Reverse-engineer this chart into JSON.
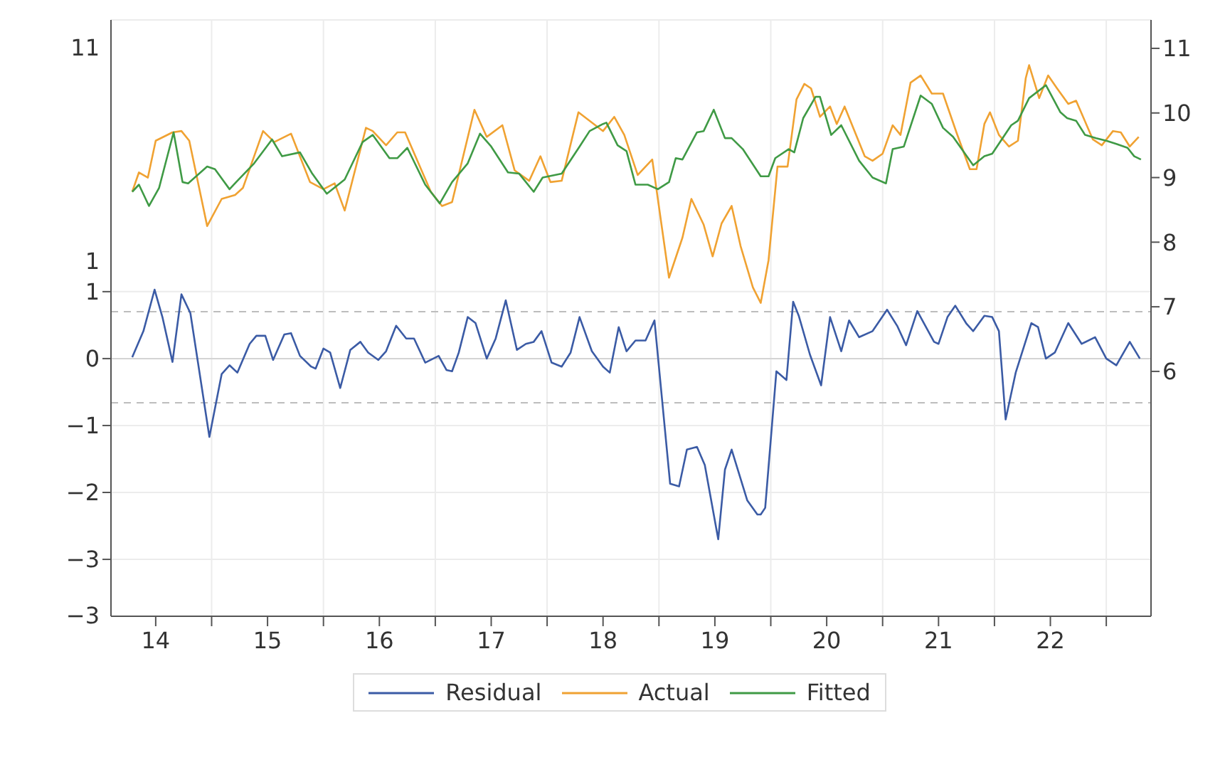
{
  "chart_data": {
    "type": "line",
    "xlim": [
      14.1,
      23.4
    ],
    "xticks": [
      {
        "value": 14.5,
        "label": "14"
      },
      {
        "value": 15,
        "label": null
      },
      {
        "value": 15.5,
        "label": "15"
      },
      {
        "value": 16,
        "label": null
      },
      {
        "value": 16.5,
        "label": "16"
      },
      {
        "value": 17,
        "label": null
      },
      {
        "value": 17.5,
        "label": "17"
      },
      {
        "value": 18,
        "label": null
      },
      {
        "value": 18.5,
        "label": "18"
      },
      {
        "value": 19,
        "label": null
      },
      {
        "value": 19.5,
        "label": "19"
      },
      {
        "value": 20,
        "label": null
      },
      {
        "value": 20.5,
        "label": "20"
      },
      {
        "value": 21,
        "label": null
      },
      {
        "value": 21.5,
        "label": "21"
      },
      {
        "value": 22,
        "label": null
      },
      {
        "value": 22.5,
        "label": "22"
      },
      {
        "value": 23,
        "label": null
      }
    ],
    "ylim": [
      -3.85,
      5.06
    ],
    "yticks": [
      {
        "value": -3,
        "label": "−3"
      },
      {
        "value": -2,
        "label": "−2"
      },
      {
        "value": -1,
        "label": "−1"
      },
      0,
      1
    ],
    "y2lim": [
      2.21,
      11.44
    ],
    "y2ticks": [
      6,
      7,
      8,
      9,
      10,
      11
    ],
    "annotations": [
      "11",
      "1",
      "−3"
    ],
    "grid": true,
    "legend": "bottom",
    "line_style": "solid",
    "marker": "none",
    "ref_lines": [
      {
        "axis": "y",
        "value": 0,
        "line_style": "solid",
        "color": "#d4d4d4"
      },
      {
        "axis": "y",
        "value": 0.7,
        "line_style": "dashed",
        "color": "#bdbdbd"
      },
      {
        "axis": "y",
        "value": -0.66,
        "line_style": "dashed",
        "color": "#bdbdbd"
      }
    ],
    "series": [
      {
        "name": "Residual",
        "color": "#3b5ba5",
        "x": [
          14.29,
          14.39,
          14.49,
          14.56,
          14.65,
          14.73,
          14.81,
          14.98,
          15.09,
          15.16,
          15.23,
          15.34,
          15.4,
          15.48,
          15.55,
          15.65,
          15.71,
          15.79,
          15.89,
          15.93,
          16,
          16.06,
          16.15,
          16.24,
          16.33,
          16.4,
          16.49,
          16.56,
          16.65,
          16.74,
          16.81,
          16.91,
          17.03,
          17.1,
          17.15,
          17.21,
          17.29,
          17.36,
          17.46,
          17.54,
          17.63,
          17.73,
          17.81,
          17.88,
          17.95,
          18.04,
          18.13,
          18.21,
          18.29,
          18.4,
          18.5,
          18.56,
          18.64,
          18.71,
          18.79,
          18.88,
          18.96,
          19.1,
          19.18,
          19.25,
          19.34,
          19.41,
          19.53,
          19.59,
          19.65,
          19.79,
          19.88,
          19.91,
          19.95,
          20.05,
          20.14,
          20.2,
          20.25,
          20.35,
          20.45,
          20.53,
          20.63,
          20.7,
          20.79,
          20.91,
          21.04,
          21.13,
          21.21,
          21.31,
          21.46,
          21.5,
          21.58,
          21.65,
          21.75,
          21.81,
          21.91,
          21.98,
          22.04,
          22.1,
          22.19,
          22.33,
          22.39,
          22.46,
          22.54,
          22.66,
          22.78,
          22.9,
          23,
          23.09,
          23.21,
          23.3
        ],
        "values": [
          0.02,
          0.41,
          1.03,
          0.62,
          -0.05,
          0.96,
          0.68,
          -1.17,
          -0.23,
          -0.1,
          -0.21,
          0.22,
          0.34,
          0.34,
          -0.02,
          0.36,
          0.38,
          0.04,
          -0.12,
          -0.15,
          0.15,
          0.09,
          -0.44,
          0.13,
          0.25,
          0.09,
          -0.02,
          0.11,
          0.49,
          0.3,
          0.3,
          -0.06,
          0.04,
          -0.17,
          -0.19,
          0.09,
          0.62,
          0.53,
          0,
          0.3,
          0.87,
          0.13,
          0.22,
          0.25,
          0.41,
          -0.06,
          -0.12,
          0.09,
          0.62,
          0.11,
          -0.12,
          -0.21,
          0.47,
          0.11,
          0.27,
          0.27,
          0.57,
          -1.87,
          -1.91,
          -1.36,
          -1.32,
          -1.59,
          -2.7,
          -1.66,
          -1.36,
          -2.12,
          -2.33,
          -2.33,
          -2.23,
          -0.19,
          -0.32,
          0.85,
          0.64,
          0.06,
          -0.4,
          0.62,
          0.11,
          0.57,
          0.32,
          0.41,
          0.73,
          0.49,
          0.2,
          0.71,
          0.25,
          0.22,
          0.62,
          0.79,
          0.52,
          0.41,
          0.64,
          0.62,
          0.41,
          -0.91,
          -0.21,
          0.53,
          0.47,
          0,
          0.09,
          0.53,
          0.22,
          0.32,
          0,
          -0.1,
          0.25,
          0
        ]
      },
      {
        "name": "Actual",
        "color": "#f0a232",
        "axis": "y2",
        "x": [
          14.29,
          14.35,
          14.43,
          14.5,
          14.65,
          14.73,
          14.8,
          14.96,
          15.09,
          15.21,
          15.28,
          15.46,
          15.56,
          15.71,
          15.88,
          16,
          16.1,
          16.19,
          16.38,
          16.44,
          16.56,
          16.66,
          16.73,
          16.96,
          17.06,
          17.15,
          17.35,
          17.46,
          17.6,
          17.71,
          17.84,
          17.94,
          18.03,
          18.13,
          18.28,
          18.5,
          18.6,
          18.69,
          18.81,
          18.94,
          19.09,
          19.21,
          19.29,
          19.4,
          19.48,
          19.56,
          19.65,
          19.73,
          19.84,
          19.91,
          19.98,
          20.06,
          20.15,
          20.23,
          20.3,
          20.36,
          20.44,
          20.53,
          20.59,
          20.66,
          20.84,
          20.91,
          21,
          21.09,
          21.16,
          21.25,
          21.34,
          21.44,
          21.54,
          21.66,
          21.78,
          21.84,
          21.91,
          21.96,
          22.04,
          22.13,
          22.21,
          22.28,
          22.31,
          22.4,
          22.48,
          22.56,
          22.66,
          22.73,
          22.88,
          22.96,
          23.06,
          23.13,
          23.21,
          23.29
        ],
        "values": [
          8.78,
          9.08,
          9,
          9.57,
          9.7,
          9.72,
          9.57,
          8.25,
          8.67,
          8.73,
          8.84,
          9.72,
          9.55,
          9.68,
          8.93,
          8.82,
          8.91,
          8.49,
          9.77,
          9.72,
          9.5,
          9.7,
          9.7,
          8.78,
          8.56,
          8.62,
          10.05,
          9.63,
          9.81,
          9.11,
          8.95,
          9.33,
          8.93,
          8.95,
          10.01,
          9.72,
          9.94,
          9.66,
          9.04,
          9.28,
          7.45,
          8.07,
          8.67,
          8.27,
          7.78,
          8.29,
          8.56,
          7.94,
          7.3,
          7.06,
          7.72,
          9.17,
          9.17,
          10.21,
          10.45,
          10.38,
          9.94,
          10.1,
          9.83,
          10.1,
          9.33,
          9.26,
          9.37,
          9.81,
          9.66,
          10.47,
          10.58,
          10.3,
          10.3,
          9.7,
          9.13,
          9.13,
          9.83,
          10.01,
          9.66,
          9.48,
          9.57,
          10.54,
          10.74,
          10.23,
          10.58,
          10.38,
          10.14,
          10.19,
          9.59,
          9.5,
          9.72,
          9.7,
          9.48,
          9.63
        ]
      },
      {
        "name": "Fitted",
        "color": "#3f9a45",
        "axis": "y2",
        "x": [
          14.29,
          14.35,
          14.44,
          14.53,
          14.66,
          14.74,
          14.79,
          14.96,
          15.03,
          15.16,
          15.23,
          15.38,
          15.54,
          15.63,
          15.79,
          15.9,
          16.03,
          16.19,
          16.35,
          16.44,
          16.59,
          16.66,
          16.75,
          16.91,
          17.04,
          17.15,
          17.29,
          17.4,
          17.5,
          17.65,
          17.75,
          17.88,
          17.96,
          18.13,
          18.29,
          18.38,
          18.5,
          18.53,
          18.63,
          18.71,
          18.79,
          18.9,
          18.99,
          19.09,
          19.15,
          19.21,
          19.34,
          19.4,
          19.49,
          19.59,
          19.65,
          19.75,
          19.91,
          19.98,
          20.04,
          20.16,
          20.21,
          20.29,
          20.4,
          20.44,
          20.54,
          20.63,
          20.79,
          20.91,
          21.03,
          21.09,
          21.19,
          21.34,
          21.44,
          21.54,
          21.63,
          21.81,
          21.91,
          21.98,
          22.15,
          22.21,
          22.31,
          22.46,
          22.59,
          22.65,
          22.73,
          22.81,
          22.91,
          23,
          23.09,
          23.19,
          23.25,
          23.31
        ],
        "values": [
          8.78,
          8.89,
          8.56,
          8.84,
          9.7,
          8.93,
          8.91,
          9.17,
          9.13,
          8.82,
          8.95,
          9.22,
          9.59,
          9.33,
          9.39,
          9.06,
          8.75,
          8.97,
          9.55,
          9.66,
          9.3,
          9.3,
          9.46,
          8.89,
          8.6,
          8.93,
          9.22,
          9.68,
          9.48,
          9.08,
          9.06,
          8.78,
          9,
          9.06,
          9.48,
          9.72,
          9.83,
          9.85,
          9.5,
          9.41,
          8.89,
          8.89,
          8.82,
          8.93,
          9.3,
          9.28,
          9.7,
          9.72,
          10.05,
          9.61,
          9.61,
          9.44,
          9.02,
          9.02,
          9.3,
          9.44,
          9.39,
          9.92,
          10.25,
          10.25,
          9.66,
          9.81,
          9.26,
          9,
          8.91,
          9.44,
          9.48,
          10.27,
          10.14,
          9.77,
          9.63,
          9.19,
          9.33,
          9.37,
          9.81,
          9.88,
          10.23,
          10.43,
          10.01,
          9.92,
          9.88,
          9.66,
          9.61,
          9.57,
          9.52,
          9.46,
          9.33,
          9.28
        ]
      }
    ]
  }
}
